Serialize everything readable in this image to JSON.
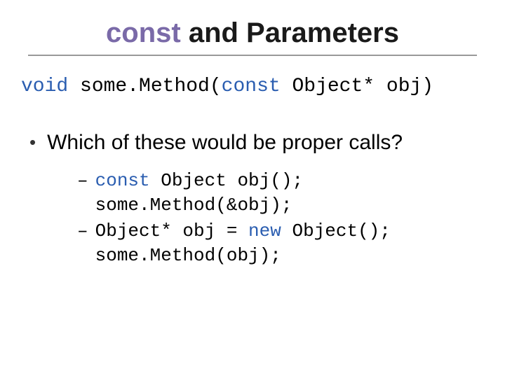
{
  "title": {
    "keyword": "const",
    "rest": " and Parameters",
    "keyword_color": "#7a6aa8",
    "rest_color": "#1a1a1a",
    "fontsize": 40
  },
  "underline_color": "#999999",
  "signature": {
    "kw_void": "void",
    "part1": " some.Method(",
    "kw_const": "const",
    "part2": " Object* obj)",
    "keyword_color": "#2a5db0",
    "fontsize": 28
  },
  "bullet": {
    "marker": "•",
    "text": "Which of these would be proper calls?",
    "fontsize": 30,
    "marker_color": "#333333"
  },
  "subitems": [
    {
      "dash": "–",
      "line1_kw": "const",
      "line1_rest": " Object obj();",
      "line2": "some.Method(&obj);"
    },
    {
      "dash": "–",
      "line1_pre": "Object* obj = ",
      "line1_kw": "new",
      "line1_post": " Object();",
      "line2": "some.Method(obj);"
    }
  ],
  "code_keyword_color": "#2a5db0",
  "code_fontsize": 26,
  "background_color": "#ffffff"
}
